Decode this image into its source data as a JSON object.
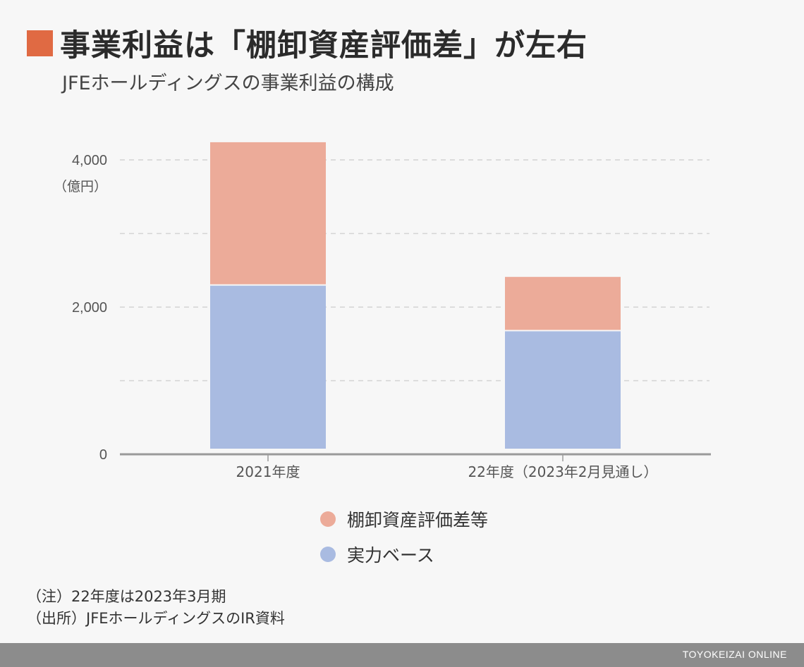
{
  "title": "事業利益は「棚卸資産評価差」が左右",
  "subtitle": "JFEホールディングスの事業利益の構成",
  "colors": {
    "accent": "#e06a43",
    "inventory": "#ecab99",
    "core": "#a9bbe1",
    "grid": "#d4d4d4",
    "axis": "#9a9a9a"
  },
  "chart_data": {
    "type": "bar",
    "stacked": true,
    "categories": [
      "2021年度",
      "22年度（2023年2月見通し）"
    ],
    "series": [
      {
        "name": "実力ベース",
        "values": [
          2310,
          1690
        ]
      },
      {
        "name": "棚卸資産評価差等",
        "values": [
          1930,
          720
        ]
      }
    ],
    "ylim": [
      0,
      4300
    ],
    "ytick_labels": [
      "0",
      "2,000",
      "4,000"
    ],
    "y_unit": "（億円）",
    "grid": true
  },
  "legend": [
    {
      "label": "棚卸資産評価差等"
    },
    {
      "label": "実力ベース"
    }
  ],
  "notes": [
    "（注）22年度は2023年3月期",
    "（出所）JFEホールディングスのIR資料"
  ],
  "footer": "TOYOKEIZAI ONLINE"
}
